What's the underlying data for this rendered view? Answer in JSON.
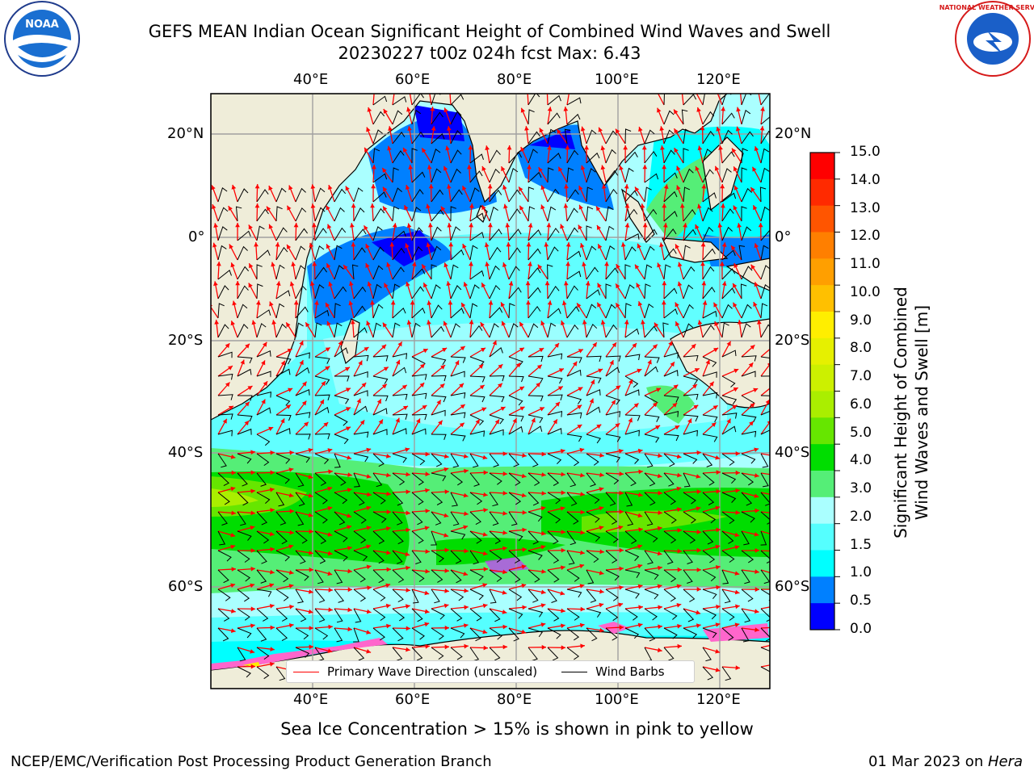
{
  "title": {
    "line1": "GEFS MEAN Indian Ocean Significant Height of Combined Wind Waves and Swell",
    "line2": "20230227 t00z 024h fcst   Max: 6.43"
  },
  "logos": {
    "left": {
      "name": "noaa-logo",
      "text": "NOAA"
    },
    "right": {
      "name": "nws-logo",
      "text": "NATIONAL WEATHER SERVICE"
    }
  },
  "map": {
    "lon_labels": [
      "40°E",
      "60°E",
      "80°E",
      "100°E",
      "120°E"
    ],
    "lat_labels": [
      "20°N",
      "0°",
      "20°S",
      "40°S",
      "60°S"
    ],
    "land_color": "#efedd9",
    "ocean_background": "#aaffff"
  },
  "legend": {
    "items": [
      {
        "label": "Primary Wave Direction (unscaled)",
        "color": "#ff0000"
      },
      {
        "label": "Wind Barbs",
        "color": "#000000"
      }
    ]
  },
  "colorbar": {
    "title_line1": "Significant Height of Combined",
    "title_line2": "Wind Waves and Swell [m]",
    "labels": [
      "15.0",
      "14.0",
      "13.0",
      "12.0",
      "11.0",
      "10.0",
      "9.0",
      "8.0",
      "7.0",
      "6.0",
      "5.0",
      "4.0",
      "3.0",
      "2.0",
      "1.5",
      "1.0",
      "0.5",
      "0.0"
    ],
    "colors_top_to_bottom": [
      "#ff0000",
      "#ff2a00",
      "#ff5500",
      "#ff7f00",
      "#ff9f00",
      "#ffc000",
      "#ffee00",
      "#e6f000",
      "#ccf000",
      "#aaee00",
      "#66e600",
      "#00dd00",
      "#55ee77",
      "#aaffff",
      "#55ffff",
      "#00ffff",
      "#0080ff",
      "#0000ff"
    ]
  },
  "footer": {
    "note": "Sea Ice Concentration > 15% is shown in pink to yellow",
    "left": "NCEP/EMC/Verification Post Processing Product Generation Branch",
    "right_prefix": "01 Mar 2023 on ",
    "right_host": "Hera"
  }
}
